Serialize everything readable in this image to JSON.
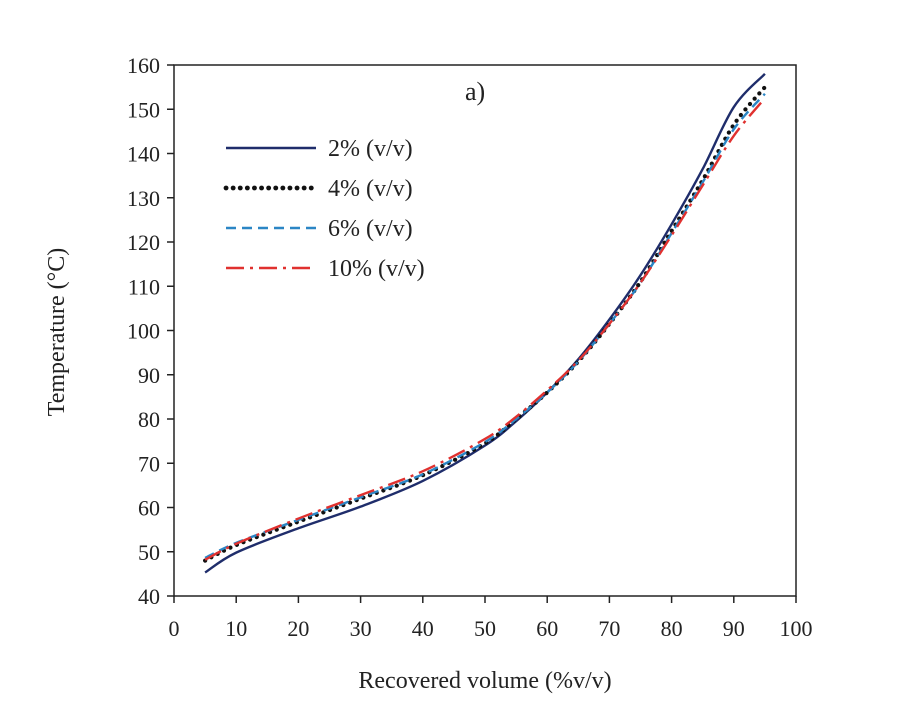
{
  "chart_data": {
    "type": "line",
    "panel_label": "a)",
    "xlabel": "Recovered volume (%v/v)",
    "ylabel": "Temperature (°C)",
    "xlim": [
      0,
      100
    ],
    "ylim": [
      40,
      160
    ],
    "xticks": [
      0,
      10,
      20,
      30,
      40,
      50,
      60,
      70,
      80,
      90,
      100
    ],
    "yticks": [
      40,
      50,
      60,
      70,
      80,
      90,
      100,
      110,
      120,
      130,
      140,
      150,
      160
    ],
    "grid": false,
    "legend_position": "top-left",
    "series": [
      {
        "name": "2% (v/v)",
        "color": "#1f2d6b",
        "style": "solid",
        "x": [
          5,
          10,
          20,
          30,
          40,
          50,
          55,
          60,
          65,
          70,
          75,
          80,
          85,
          90,
          95
        ],
        "y": [
          45.3,
          49.8,
          55.3,
          60.2,
          66.0,
          74.0,
          79.5,
          86.0,
          93.5,
          102.5,
          112.5,
          124.0,
          136.5,
          150.5,
          158.0
        ]
      },
      {
        "name": "4% (v/v)",
        "color": "#111111",
        "style": "dotted",
        "x": [
          5,
          10,
          20,
          30,
          40,
          50,
          55,
          60,
          65,
          70,
          75,
          80,
          85,
          90,
          95
        ],
        "y": [
          48.0,
          51.5,
          56.8,
          62.0,
          67.3,
          74.5,
          80.0,
          86.0,
          93.0,
          101.5,
          111.0,
          122.5,
          134.0,
          146.5,
          155.0
        ]
      },
      {
        "name": "6% (v/v)",
        "color": "#2b86c5",
        "style": "dashed",
        "x": [
          5,
          10,
          20,
          30,
          40,
          50,
          55,
          60,
          65,
          70,
          75,
          80,
          85,
          90,
          95
        ],
        "y": [
          48.6,
          52.0,
          57.2,
          62.3,
          67.5,
          74.8,
          80.0,
          86.0,
          93.0,
          101.5,
          110.8,
          122.0,
          133.5,
          145.5,
          153.5
        ]
      },
      {
        "name": "10% (v/v)",
        "color": "#e0312f",
        "style": "dashdot",
        "x": [
          5,
          10,
          20,
          30,
          40,
          50,
          55,
          60,
          65,
          70,
          75,
          80,
          85,
          90,
          95
        ],
        "y": [
          48.2,
          51.8,
          57.5,
          62.8,
          68.2,
          75.5,
          80.5,
          86.5,
          93.2,
          101.5,
          110.8,
          121.5,
          132.8,
          144.0,
          152.5
        ]
      }
    ]
  }
}
